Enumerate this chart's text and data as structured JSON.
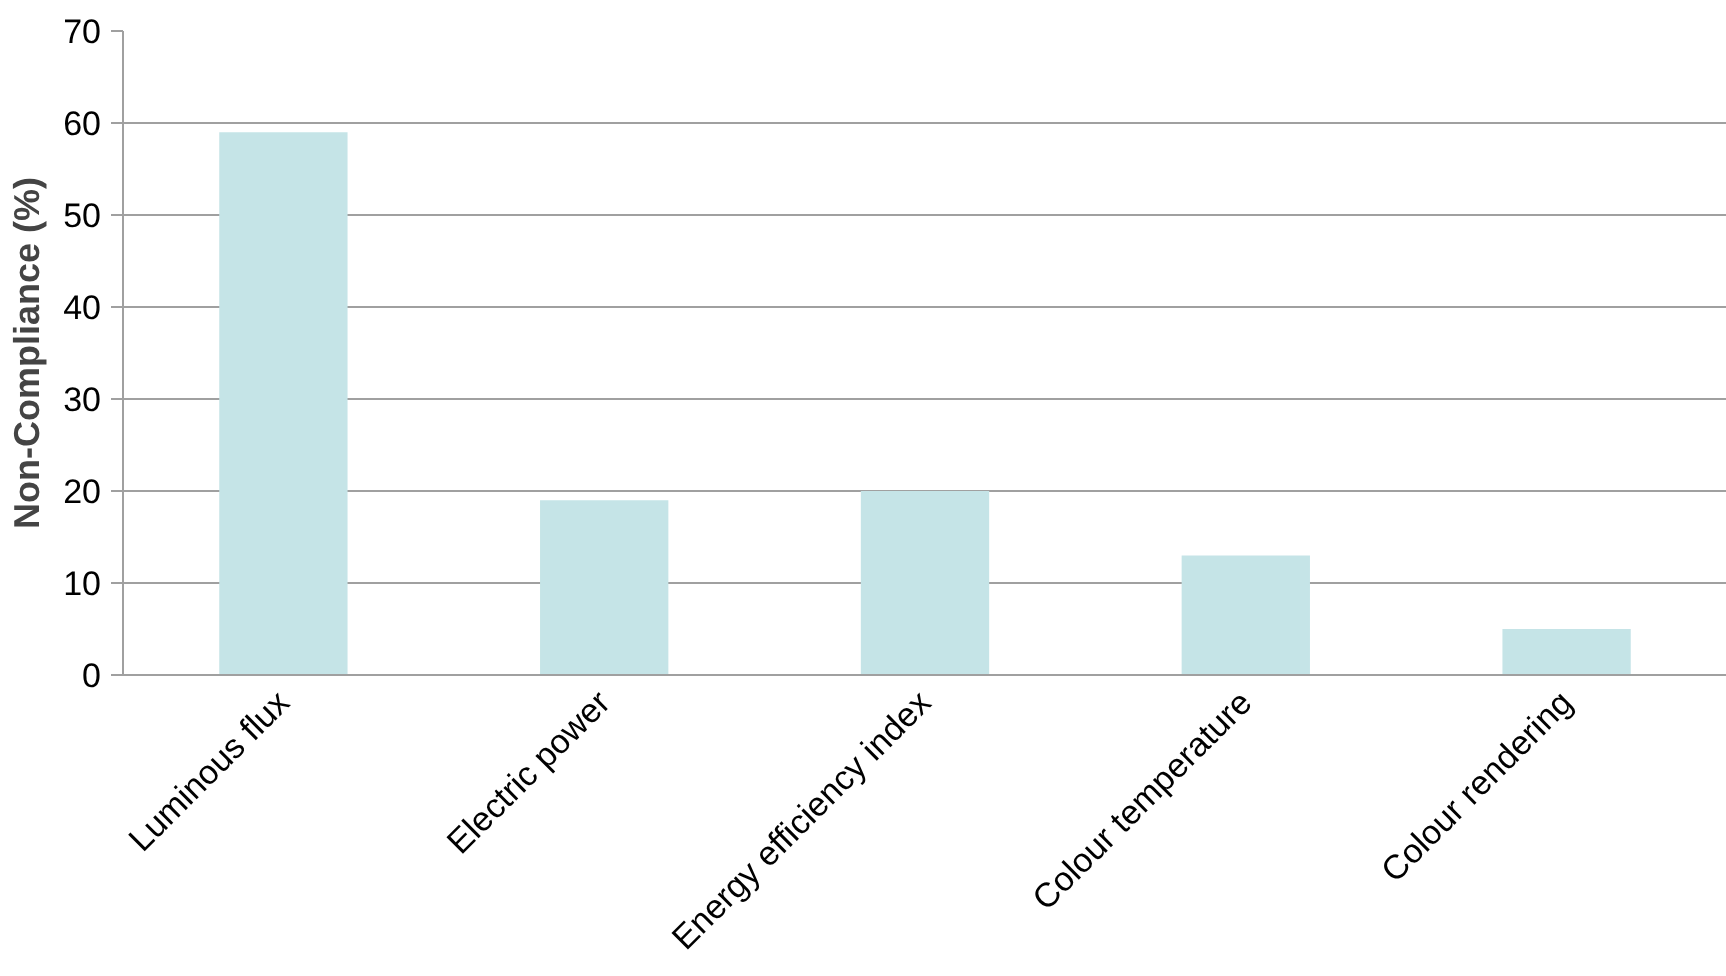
{
  "chart_data": {
    "type": "bar",
    "ylabel": "Non-Compliance (%)",
    "categories": [
      "Luminous flux",
      "Electric power",
      "Energy efficiency index",
      "Colour temperature",
      "Colour rendering"
    ],
    "values": [
      59,
      19,
      20,
      13,
      5
    ],
    "color": "#c5e4e7",
    "ylim": [
      0,
      70
    ],
    "yticks": [
      0,
      10,
      20,
      30,
      40,
      50,
      60,
      70
    ],
    "grid": "y"
  }
}
